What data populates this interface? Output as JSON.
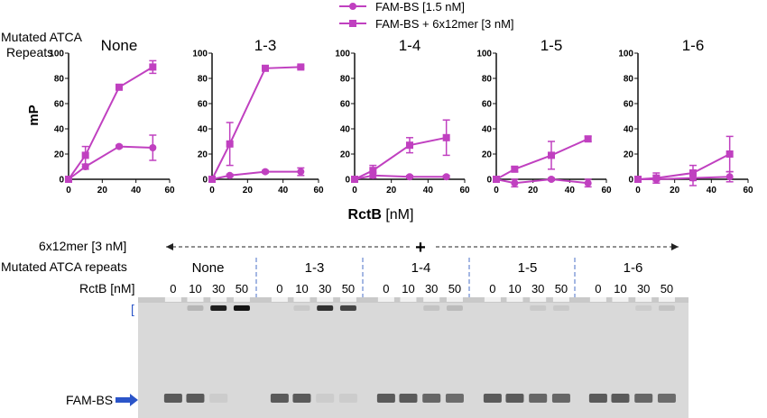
{
  "legend": {
    "items": [
      {
        "label": "FAM-BS [1.5 nM]",
        "marker": "circle"
      },
      {
        "label": "FAM-BS + 6x12mer [3 nM]",
        "marker": "square"
      }
    ]
  },
  "row_label": {
    "line1": "Mutated ATCA",
    "line2": "Repeats"
  },
  "y_axis_title": "mP",
  "x_axis_title": {
    "bold": "RctB",
    "unit": " [nM]"
  },
  "colors": {
    "series": "#c040c0",
    "dash": "#4a6fc7",
    "arrow": "#2b55c9",
    "gel": "#d9d9d9"
  },
  "chart_data": [
    {
      "type": "line",
      "title": "None",
      "x": [
        0,
        10,
        30,
        50
      ],
      "series": [
        {
          "name": "FAM-BS [1.5 nM]",
          "marker": "circle",
          "values": [
            0,
            10,
            26,
            25
          ],
          "err": [
            0,
            2,
            1,
            10
          ]
        },
        {
          "name": "FAM-BS + 6x12mer [3 nM]",
          "marker": "square",
          "values": [
            0,
            19,
            73,
            89
          ],
          "err": [
            0,
            7,
            2,
            5
          ]
        }
      ],
      "xlim": [
        0,
        60
      ],
      "ylim": [
        0,
        100
      ],
      "xticks": [
        0,
        20,
        40,
        60
      ],
      "yticks": [
        0,
        20,
        40,
        60,
        80,
        100
      ]
    },
    {
      "type": "line",
      "title": "1-3",
      "x": [
        0,
        10,
        30,
        50
      ],
      "series": [
        {
          "name": "FAM-BS [1.5 nM]",
          "marker": "circle",
          "values": [
            0,
            3,
            6,
            6
          ],
          "err": [
            0,
            1,
            1,
            3
          ]
        },
        {
          "name": "FAM-BS + 6x12mer [3 nM]",
          "marker": "square",
          "values": [
            0,
            28,
            88,
            89
          ],
          "err": [
            0,
            17,
            1,
            1
          ]
        }
      ],
      "xlim": [
        0,
        60
      ],
      "ylim": [
        0,
        100
      ],
      "xticks": [
        0,
        20,
        40,
        60
      ],
      "yticks": [
        0,
        20,
        40,
        60,
        80,
        100
      ]
    },
    {
      "type": "line",
      "title": "1-4",
      "x": [
        0,
        10,
        30,
        50
      ],
      "series": [
        {
          "name": "FAM-BS [1.5 nM]",
          "marker": "circle",
          "values": [
            0,
            3,
            2,
            2
          ],
          "err": [
            0,
            2,
            1,
            1
          ]
        },
        {
          "name": "FAM-BS + 6x12mer [3 nM]",
          "marker": "square",
          "values": [
            0,
            7,
            27,
            33
          ],
          "err": [
            0,
            4,
            6,
            14
          ]
        }
      ],
      "xlim": [
        0,
        60
      ],
      "ylim": [
        0,
        100
      ],
      "xticks": [
        0,
        20,
        40,
        60
      ],
      "yticks": [
        0,
        20,
        40,
        60,
        80,
        100
      ]
    },
    {
      "type": "line",
      "title": "1-5",
      "x": [
        0,
        10,
        30,
        50
      ],
      "series": [
        {
          "name": "FAM-BS [1.5 nM]",
          "marker": "circle",
          "values": [
            0,
            -3,
            0,
            -3
          ],
          "err": [
            0,
            3,
            1,
            3
          ]
        },
        {
          "name": "FAM-BS + 6x12mer [3 nM]",
          "marker": "square",
          "values": [
            0,
            8,
            19,
            32
          ],
          "err": [
            0,
            2,
            11,
            2
          ]
        }
      ],
      "xlim": [
        0,
        60
      ],
      "ylim": [
        0,
        100
      ],
      "xticks": [
        0,
        20,
        40,
        60
      ],
      "yticks": [
        0,
        20,
        40,
        60,
        80,
        100
      ]
    },
    {
      "type": "line",
      "title": "1-6",
      "x": [
        0,
        10,
        30,
        50
      ],
      "series": [
        {
          "name": "FAM-BS [1.5 nM]",
          "marker": "circle",
          "values": [
            0,
            0,
            1,
            2
          ],
          "err": [
            0,
            3,
            6,
            4
          ]
        },
        {
          "name": "FAM-BS + 6x12mer [3 nM]",
          "marker": "square",
          "values": [
            0,
            1,
            5,
            20
          ],
          "err": [
            0,
            4,
            6,
            14
          ]
        }
      ],
      "xlim": [
        0,
        60
      ],
      "ylim": [
        0,
        100
      ],
      "xticks": [
        0,
        20,
        40,
        60
      ],
      "yticks": [
        0,
        20,
        40,
        60,
        80,
        100
      ]
    }
  ],
  "gel": {
    "sixmer_label": "6x12mer [3 nM]",
    "plus_symbol": "+",
    "mutated_label": "Mutated ATCA repeats",
    "rctb_label": "RctB [nM]",
    "groups": [
      {
        "name": "None",
        "lanes": [
          "0",
          "10",
          "30",
          "50"
        ],
        "bound": [
          0,
          0.15,
          0.95,
          1.0
        ],
        "free": [
          1,
          1,
          0.05,
          0.0
        ]
      },
      {
        "name": "1-3",
        "lanes": [
          "0",
          "10",
          "30",
          "50"
        ],
        "bound": [
          0,
          0.05,
          0.85,
          0.75
        ],
        "free": [
          1,
          1,
          0.05,
          0.05
        ]
      },
      {
        "name": "1-4",
        "lanes": [
          "0",
          "10",
          "30",
          "50"
        ],
        "bound": [
          0,
          0,
          0.08,
          0.12
        ],
        "free": [
          1,
          1,
          0.9,
          0.85
        ]
      },
      {
        "name": "1-5",
        "lanes": [
          "0",
          "10",
          "30",
          "50"
        ],
        "bound": [
          0,
          0,
          0.05,
          0.05
        ],
        "free": [
          1,
          1,
          0.9,
          0.9
        ]
      },
      {
        "name": "1-6",
        "lanes": [
          "0",
          "10",
          "30",
          "50"
        ],
        "bound": [
          0,
          0,
          0.03,
          0.08
        ],
        "free": [
          1,
          1,
          0.9,
          0.85
        ]
      }
    ],
    "fam_bs_label": "FAM-BS",
    "bracket_glyph": "["
  }
}
